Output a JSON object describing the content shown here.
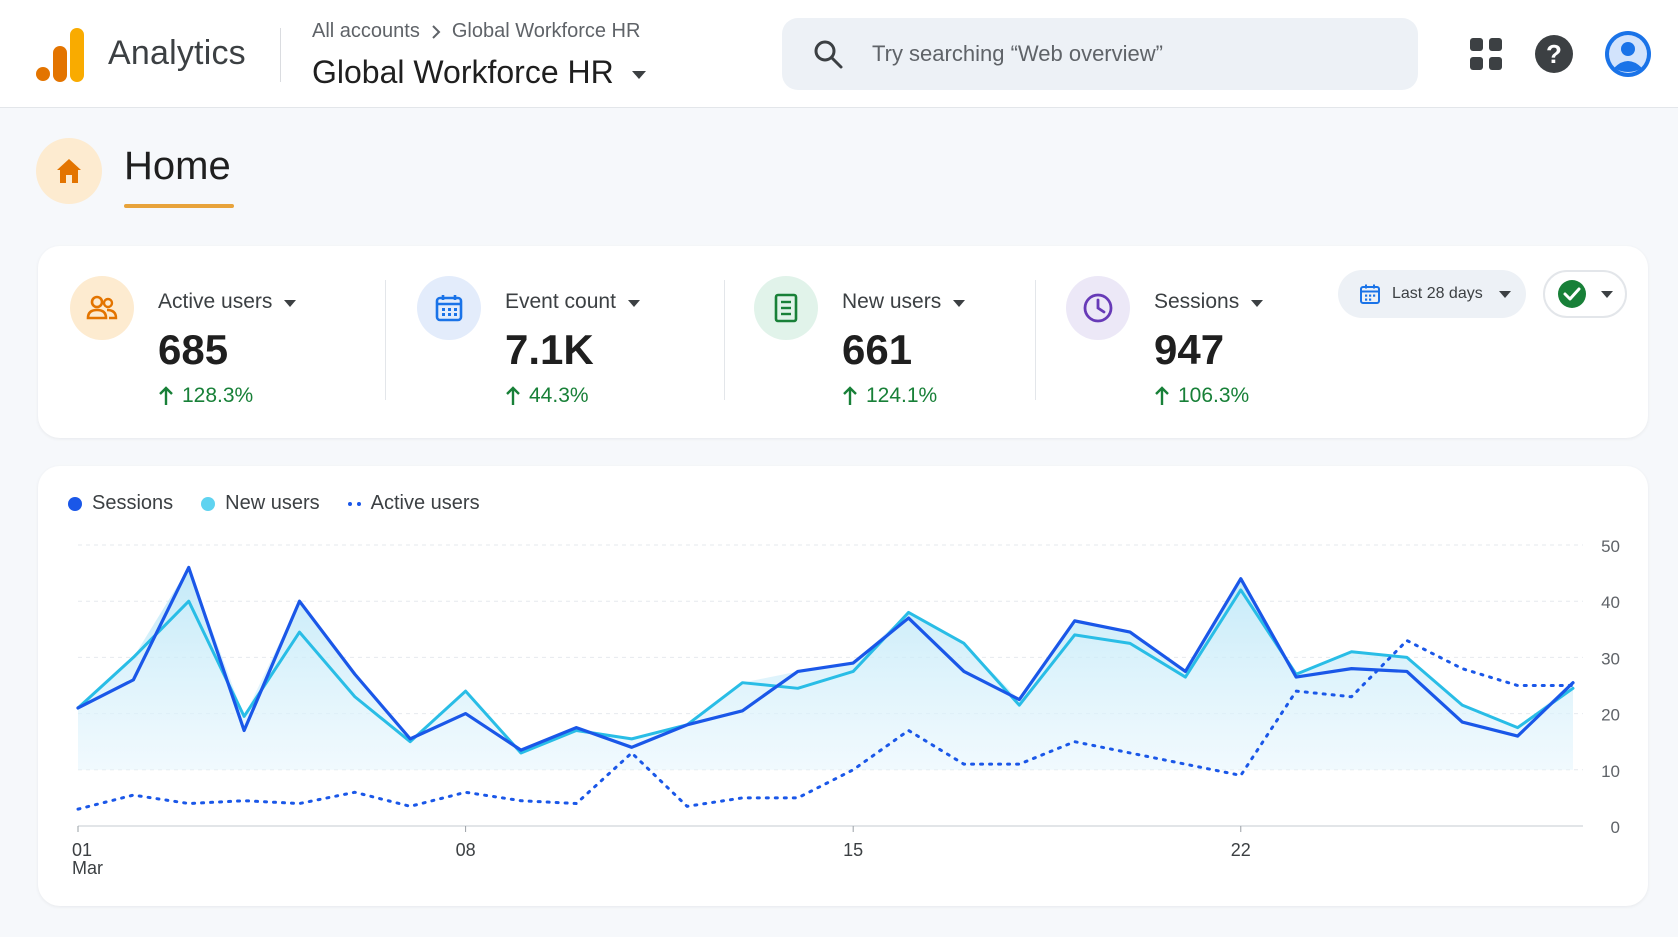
{
  "app": {
    "name": "Analytics"
  },
  "breadcrumb": {
    "root": "All accounts",
    "current": "Global Workforce HR"
  },
  "property": {
    "name": "Global Workforce HR"
  },
  "search": {
    "placeholder": "Try searching “Web overview”"
  },
  "icons": {
    "logo": "analytics-logo-icon",
    "search": "search-icon",
    "apps": "apps-grid-icon",
    "help": "help-icon",
    "account": "account-avatar-icon",
    "home": "home-icon"
  },
  "page": {
    "title": "Home"
  },
  "kpis": [
    {
      "label": "Active users",
      "value": "685",
      "change": "128.3%",
      "icon": "people-icon",
      "icon_bg": "#fdebd0",
      "icon_color": "#e37400"
    },
    {
      "label": "Event count",
      "value": "7.1K",
      "change": "44.3%",
      "icon": "calendar-icon",
      "icon_bg": "#e3ecfb",
      "icon_color": "#1a73e8"
    },
    {
      "label": "New users",
      "value": "661",
      "change": "124.1%",
      "icon": "document-icon",
      "icon_bg": "#e1f3ea",
      "icon_color": "#188038"
    },
    {
      "label": "Sessions",
      "value": "947",
      "change": "106.3%",
      "icon": "clock-icon",
      "icon_bg": "#ece8f7",
      "icon_color": "#673ab7"
    }
  ],
  "date_range": {
    "label": "Last 28 days"
  },
  "colors": {
    "sessions": "#1a57e8",
    "new_users": "#29bde6",
    "active_users": "#1a57e8",
    "positive": "#188038",
    "accent": "#e8a33b"
  },
  "chart_data": {
    "type": "line",
    "legend": [
      "Sessions",
      "New users",
      "Active users"
    ],
    "x_tick_labels": [
      {
        "day": 1,
        "label": "01",
        "sublabel": "Mar"
      },
      {
        "day": 8,
        "label": "08"
      },
      {
        "day": 15,
        "label": "15"
      },
      {
        "day": 22,
        "label": "22"
      }
    ],
    "x": [
      1,
      2,
      3,
      4,
      5,
      6,
      7,
      8,
      9,
      10,
      11,
      12,
      13,
      14,
      15,
      16,
      17,
      18,
      19,
      20,
      21,
      22,
      23,
      24,
      25,
      26,
      27,
      28
    ],
    "ylim": [
      0,
      50
    ],
    "y_ticks": [
      0,
      10,
      20,
      30,
      40,
      50
    ],
    "series": [
      {
        "name": "Sessions",
        "style": "solid",
        "values": [
          21,
          26,
          46,
          17,
          40,
          27,
          15.5,
          20,
          13.5,
          17.5,
          14,
          18,
          20.5,
          27.5,
          29,
          37,
          27.5,
          22.5,
          36.5,
          34.5,
          27.5,
          44,
          26.5,
          28,
          27.5,
          18.5,
          16,
          25.5
        ]
      },
      {
        "name": "New users",
        "style": "solid",
        "values": [
          21,
          30,
          40,
          19.5,
          34.5,
          23,
          15,
          24,
          13,
          17,
          15.5,
          18,
          25.5,
          24.5,
          27.5,
          38,
          32.5,
          21.5,
          34,
          32.5,
          26.5,
          42,
          27,
          31,
          30,
          21.5,
          17.5,
          24.5
        ]
      },
      {
        "name": "Active users",
        "style": "dotted",
        "values": [
          3,
          5.5,
          4,
          4.5,
          4,
          6,
          3.5,
          6,
          4.5,
          4,
          13,
          3.5,
          5,
          5,
          10,
          17,
          11,
          11,
          15,
          13,
          11,
          9,
          24,
          23,
          33,
          28,
          25,
          25
        ]
      }
    ]
  }
}
